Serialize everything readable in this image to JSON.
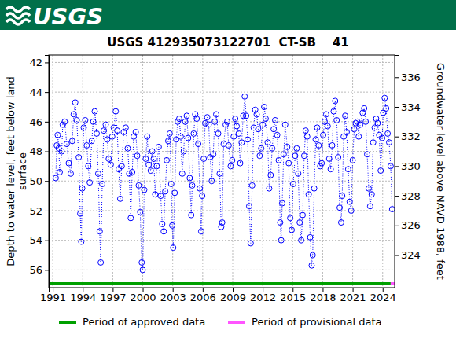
{
  "header": {
    "logo": "USGS"
  },
  "chart_data": {
    "type": "scatter",
    "title": "USGS 412935073122701  CT-SB    41",
    "ylabel_lines": [
      "Depth to water level, feet below land",
      "surface"
    ],
    "y2label": "Groundwater level above NAVD 1988, feet",
    "xlim": [
      1990.6,
      2025.2
    ],
    "xticks": [
      1991,
      1994,
      1997,
      2000,
      2003,
      2006,
      2009,
      2012,
      2015,
      2018,
      2021,
      2024
    ],
    "ylim": [
      41.5,
      57.2
    ],
    "yticks": [
      42,
      44,
      46,
      48,
      50,
      52,
      54,
      56
    ],
    "y2lim": [
      337.5,
      321.8
    ],
    "y2ticks": [
      324,
      326,
      328,
      330,
      332,
      334,
      336
    ],
    "grid": true,
    "x": [
      1991.3,
      1991.4,
      1991.5,
      1991.6,
      1991.7,
      1991.9,
      1992.0,
      1992.2,
      1992.4,
      1992.6,
      1992.8,
      1992.95,
      1993.1,
      1993.25,
      1993.4,
      1993.6,
      1993.75,
      1993.85,
      1993.95,
      1994.1,
      1994.25,
      1994.4,
      1994.55,
      1994.7,
      1994.9,
      1995.05,
      1995.2,
      1995.4,
      1995.55,
      1995.7,
      1995.8,
      1995.95,
      1996.1,
      1996.3,
      1996.45,
      1996.6,
      1996.8,
      1996.95,
      1997.1,
      1997.3,
      1997.45,
      1997.6,
      1997.75,
      1997.9,
      1998.1,
      1998.3,
      1998.5,
      1998.65,
      1998.8,
      1998.95,
      1999.1,
      1999.3,
      1999.45,
      1999.6,
      1999.75,
      1999.9,
      2000.0,
      2000.15,
      2000.3,
      2000.45,
      2000.6,
      2000.8,
      2000.95,
      2001.1,
      2001.25,
      2001.4,
      2001.6,
      2001.8,
      2001.95,
      2002.1,
      2002.25,
      2002.4,
      2002.55,
      2002.7,
      2002.85,
      2002.95,
      2003.05,
      2003.2,
      2003.35,
      2003.5,
      2003.65,
      2003.8,
      2003.95,
      2004.1,
      2004.25,
      2004.4,
      2004.55,
      2004.7,
      2004.85,
      2004.95,
      2005.1,
      2005.25,
      2005.4,
      2005.55,
      2005.7,
      2005.85,
      2005.95,
      2006.1,
      2006.25,
      2006.45,
      2006.6,
      2006.75,
      2006.9,
      2007.05,
      2007.2,
      2007.35,
      2007.55,
      2007.7,
      2007.85,
      2007.95,
      2008.1,
      2008.3,
      2008.45,
      2008.6,
      2008.8,
      2008.95,
      2009.1,
      2009.25,
      2009.4,
      2009.6,
      2009.75,
      2009.9,
      2010.05,
      2010.2,
      2010.35,
      2010.5,
      2010.65,
      2010.8,
      2010.95,
      2011.1,
      2011.25,
      2011.4,
      2011.55,
      2011.7,
      2011.85,
      2012.0,
      2012.15,
      2012.3,
      2012.5,
      2012.65,
      2012.8,
      2012.95,
      2013.1,
      2013.25,
      2013.45,
      2013.6,
      2013.75,
      2013.85,
      2013.95,
      2014.1,
      2014.25,
      2014.45,
      2014.6,
      2014.75,
      2014.9,
      2015.05,
      2015.25,
      2015.4,
      2015.55,
      2015.7,
      2015.85,
      2016.0,
      2016.15,
      2016.3,
      2016.45,
      2016.6,
      2016.75,
      2016.9,
      2017.0,
      2017.15,
      2017.3,
      2017.45,
      2017.6,
      2017.75,
      2017.9,
      2018.05,
      2018.2,
      2018.35,
      2018.5,
      2018.65,
      2018.8,
      2018.95,
      2019.1,
      2019.25,
      2019.4,
      2019.55,
      2019.7,
      2019.85,
      2019.95,
      2020.1,
      2020.25,
      2020.4,
      2020.55,
      2020.7,
      2020.85,
      2021.0,
      2021.15,
      2021.3,
      2021.45,
      2021.6,
      2021.75,
      2022.0,
      2022.15,
      2022.3,
      2022.45,
      2022.6,
      2022.75,
      2022.9,
      2023.05,
      2023.2,
      2023.35,
      2023.5,
      2023.65,
      2023.8,
      2023.95,
      2024.05,
      2024.2,
      2024.35,
      2024.5,
      2024.65,
      2024.8,
      2024.95
    ],
    "series": [
      {
        "color": "#0000ff",
        "marker": "circle",
        "line_style": "dotted",
        "values": [
          49.8,
          47.6,
          46.9,
          47.8,
          49.4,
          48.0,
          46.2,
          46.0,
          47.5,
          48.8,
          49.5,
          47.3,
          45.5,
          44.7,
          45.9,
          48.4,
          52.2,
          54.1,
          50.5,
          46.4,
          45.9,
          47.6,
          49.0,
          50.1,
          47.3,
          46.0,
          45.3,
          46.8,
          49.5,
          53.4,
          55.5,
          50.2,
          46.6,
          46.2,
          47.2,
          48.5,
          48.9,
          47.0,
          46.4,
          45.3,
          46.6,
          49.2,
          51.2,
          49.0,
          46.7,
          46.4,
          47.8,
          49.5,
          52.5,
          49.4,
          47.0,
          46.7,
          48.3,
          50.3,
          52.1,
          55.5,
          56.0,
          50.6,
          48.5,
          47.0,
          48.9,
          49.3,
          48.0,
          48.5,
          50.9,
          49.0,
          47.7,
          51.0,
          52.9,
          53.4,
          50.7,
          48.6,
          47.3,
          46.8,
          50.2,
          53.0,
          54.5,
          50.8,
          47.2,
          46.0,
          45.8,
          47.0,
          49.5,
          48.0,
          46.0,
          45.6,
          47.1,
          49.8,
          52.3,
          50.3,
          46.8,
          45.5,
          45.8,
          47.5,
          50.5,
          53.4,
          51.0,
          48.5,
          46.1,
          45.7,
          46.2,
          48.4,
          50.0,
          48.2,
          46.0,
          45.5,
          46.8,
          49.5,
          53.1,
          52.8,
          47.5,
          46.2,
          46.0,
          47.6,
          49.0,
          48.6,
          47.0,
          45.8,
          46.3,
          46.8,
          48.8,
          47.4,
          45.6,
          44.3,
          45.6,
          47.2,
          51.7,
          54.2,
          50.3,
          46.4,
          45.2,
          45.5,
          46.5,
          48.3,
          47.8,
          46.2,
          45.0,
          45.8,
          47.4,
          50.5,
          49.6,
          47.8,
          46.5,
          45.9,
          46.9,
          48.6,
          52.8,
          54.0,
          51.5,
          48.2,
          46.2,
          47.7,
          48.8,
          52.5,
          53.3,
          50.2,
          48.3,
          47.8,
          49.5,
          52.8,
          54.0,
          52.3,
          48.3,
          46.6,
          47.0,
          50.9,
          53.8,
          55.7,
          55.0,
          50.5,
          47.2,
          46.4,
          47.6,
          49.0,
          48.8,
          46.9,
          46.0,
          45.5,
          46.3,
          48.5,
          49.2,
          47.6,
          45.3,
          44.6,
          45.9,
          48.4,
          51.8,
          52.8,
          51.0,
          47.0,
          45.6,
          46.7,
          49.2,
          51.4,
          52.0,
          48.6,
          46.5,
          46.1,
          46.0,
          47.0,
          46.2,
          45.4,
          45.1,
          46.0,
          48.2,
          50.5,
          51.7,
          50.9,
          47.4,
          46.4,
          45.8,
          46.1,
          46.9,
          49.3,
          47.1,
          45.4,
          44.4,
          45.1,
          46.8,
          47.4,
          49.0,
          51.9
        ]
      }
    ],
    "periods": [
      {
        "name": "Period of approved data",
        "color": "#00a000",
        "range": [
          1990.6,
          2024.8
        ]
      },
      {
        "name": "Period of provisional data",
        "color": "#ff55ff",
        "range": [
          2024.8,
          2025.2
        ]
      }
    ],
    "legend": "bottom"
  }
}
